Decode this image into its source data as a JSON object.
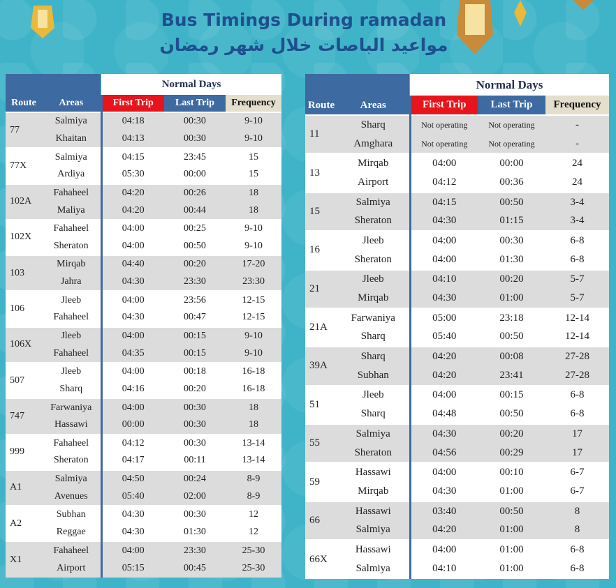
{
  "header": {
    "title": "Bus Timings During ramadan",
    "title_ar": "مواعيد الباصات خلال شهر رمضان"
  },
  "tables": [
    {
      "columns": {
        "normal_days": "Normal Days",
        "route": "Route",
        "areas": "Areas",
        "first_trip": "First Trip",
        "last_trip": "Last Trip",
        "frequency": "Frequency"
      },
      "routes": [
        {
          "route": "77",
          "stops": [
            [
              "Salmiya",
              "04:18",
              "00:30",
              "9-10"
            ],
            [
              "Khaitan",
              "04:13",
              "00:30",
              "9-10"
            ]
          ]
        },
        {
          "route": "77X",
          "stops": [
            [
              "Salmiya",
              "04:15",
              "23:45",
              "15"
            ],
            [
              "Ardiya",
              "05:30",
              "00:00",
              "15"
            ]
          ]
        },
        {
          "route": "102A",
          "stops": [
            [
              "Fahaheel",
              "04:20",
              "00:26",
              "18"
            ],
            [
              "Maliya",
              "04:20",
              "00:44",
              "18"
            ]
          ]
        },
        {
          "route": "102X",
          "stops": [
            [
              "Fahaheel",
              "04:00",
              "00:25",
              "9-10"
            ],
            [
              "Sheraton",
              "04:00",
              "00:50",
              "9-10"
            ]
          ]
        },
        {
          "route": "103",
          "stops": [
            [
              "Mirqab",
              "04:40",
              "00:20",
              "17-20"
            ],
            [
              "Jahra",
              "04:30",
              "23:30",
              "23:30"
            ]
          ]
        },
        {
          "route": "106",
          "stops": [
            [
              "Jleeb",
              "04:00",
              "23:56",
              "12-15"
            ],
            [
              "Fahaheel",
              "04:30",
              "00:47",
              "12-15"
            ]
          ]
        },
        {
          "route": "106X",
          "stops": [
            [
              "Jleeb",
              "04:00",
              "00:15",
              "9-10"
            ],
            [
              "Fahaheel",
              "04:35",
              "00:15",
              "9-10"
            ]
          ]
        },
        {
          "route": "507",
          "stops": [
            [
              "Jleeb",
              "04:00",
              "00:18",
              "16-18"
            ],
            [
              "Sharq",
              "04:16",
              "00:20",
              "16-18"
            ]
          ]
        },
        {
          "route": "747",
          "stops": [
            [
              "Farwaniya",
              "04:00",
              "00:30",
              "18"
            ],
            [
              "Hassawi",
              "00:00",
              "00:30",
              "18"
            ]
          ]
        },
        {
          "route": "999",
          "stops": [
            [
              "Fahaheel",
              "04:12",
              "00:30",
              "13-14"
            ],
            [
              "Sheraton",
              "04:17",
              "00:11",
              "13-14"
            ]
          ]
        },
        {
          "route": "A1",
          "stops": [
            [
              "Salmiya",
              "04:50",
              "00:24",
              "8-9"
            ],
            [
              "Avenues",
              "05:40",
              "02:00",
              "8-9"
            ]
          ]
        },
        {
          "route": "A2",
          "stops": [
            [
              "Subhan",
              "04:30",
              "00:30",
              "12"
            ],
            [
              "Reggae",
              "04:30",
              "01:30",
              "12"
            ]
          ]
        },
        {
          "route": "X1",
          "stops": [
            [
              "Fahaheel",
              "04:00",
              "23:30",
              "25-30"
            ],
            [
              "Airport",
              "05:15",
              "00:45",
              "25-30"
            ]
          ]
        }
      ]
    },
    {
      "columns": {
        "normal_days": "Normal Days",
        "route": "Route",
        "areas": "Areas",
        "first_trip": "First Trip",
        "last_trip": "Last Trip",
        "frequency": "Frequency"
      },
      "routes": [
        {
          "route": "11",
          "stops": [
            [
              "Sharq",
              "Not operating",
              "Not operating",
              "-"
            ],
            [
              "Amghara",
              "Not operating",
              "Not operating",
              "-"
            ]
          ]
        },
        {
          "route": "13",
          "stops": [
            [
              "Mirqab",
              "04:00",
              "00:00",
              "24"
            ],
            [
              "Airport",
              "04:12",
              "00:36",
              "24"
            ]
          ]
        },
        {
          "route": "15",
          "stops": [
            [
              "Salmiya",
              "04:15",
              "00:50",
              "3-4"
            ],
            [
              "Sheraton",
              "04:30",
              "01:15",
              "3-4"
            ]
          ]
        },
        {
          "route": "16",
          "stops": [
            [
              "Jleeb",
              "04:00",
              "00:30",
              "6-8"
            ],
            [
              "Sheraton",
              "04:00",
              "01:30",
              "6-8"
            ]
          ]
        },
        {
          "route": "21",
          "stops": [
            [
              "Jleeb",
              "04:10",
              "00:20",
              "5-7"
            ],
            [
              "Mirqab",
              "04:30",
              "01:00",
              "5-7"
            ]
          ]
        },
        {
          "route": "21A",
          "stops": [
            [
              "Farwaniya",
              "05:00",
              "23:18",
              "12-14"
            ],
            [
              "Sharq",
              "05:40",
              "00:50",
              "12-14"
            ]
          ]
        },
        {
          "route": "39A",
          "stops": [
            [
              "Sharq",
              "04:20",
              "00:08",
              "27-28"
            ],
            [
              "Subhan",
              "04:20",
              "23:41",
              "27-28"
            ]
          ]
        },
        {
          "route": "51",
          "stops": [
            [
              "Jleeb",
              "04:00",
              "00:15",
              "6-8"
            ],
            [
              "Sharq",
              "04:48",
              "00:50",
              "6-8"
            ]
          ]
        },
        {
          "route": "55",
          "stops": [
            [
              "Salmiya",
              "04:30",
              "00:20",
              "17"
            ],
            [
              "Sheraton",
              "04:56",
              "00:29",
              "17"
            ]
          ]
        },
        {
          "route": "59",
          "stops": [
            [
              "Hassawi",
              "04:00",
              "00:10",
              "6-7"
            ],
            [
              "Mirqab",
              "04:30",
              "01:00",
              "6-7"
            ]
          ]
        },
        {
          "route": "66",
          "stops": [
            [
              "Hassawi",
              "03:40",
              "00:50",
              "8"
            ],
            [
              "Salmiya",
              "04:20",
              "01:00",
              "8"
            ]
          ]
        },
        {
          "route": "66X",
          "stops": [
            [
              "Hassawi",
              "04:00",
              "01:00",
              "6-8"
            ],
            [
              "Salmiya",
              "04:10",
              "01:00",
              "6-8"
            ]
          ]
        }
      ]
    }
  ]
}
